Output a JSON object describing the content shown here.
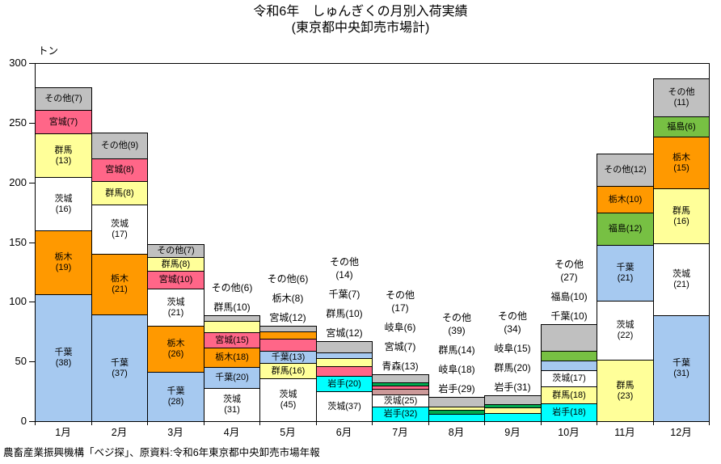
{
  "title": {
    "line1": "令和6年　しゅんぎくの月別入荷実績",
    "line2": "(東京都中央卸売市場計)"
  },
  "footer": "農畜産業振興機構「ベジ探」、原資料:令和6年東京都中央卸売市場年報",
  "chart_data": {
    "type": "bar",
    "stacked": true,
    "unit_label": "トン",
    "ylabel": "トン",
    "xlabel": "",
    "ylim": [
      0,
      300
    ],
    "yticks": [
      0,
      50,
      100,
      150,
      200,
      250,
      300
    ],
    "grid": false,
    "legend": "labels-on-segments",
    "value_note": "segment labels are percent shares; totals are tons estimated from bar heights",
    "colors": {
      "千葉": "#A6C9F0",
      "栃木": "#FF9900",
      "茨城": "#FFFFFF",
      "群馬": "#FFFF99",
      "宮城": "#FF6688",
      "その他": "#C0C0C0",
      "岩手": "#00FFFF",
      "岐阜": "#00A94F",
      "青森": "#CC9999",
      "福島": "#77C043"
    },
    "months": [
      {
        "label": "1月",
        "total_tons": 280,
        "segments": [
          {
            "name": "千葉",
            "pct": 38,
            "label": "in2"
          },
          {
            "name": "栃木",
            "pct": 19,
            "label": "in2"
          },
          {
            "name": "茨城",
            "pct": 16,
            "label": "in2"
          },
          {
            "name": "群馬",
            "pct": 13,
            "label": "in2"
          },
          {
            "name": "宮城",
            "pct": 7,
            "label": "in1"
          },
          {
            "name": "その他",
            "pct": 7,
            "label": "in1"
          }
        ]
      },
      {
        "label": "2月",
        "total_tons": 242,
        "segments": [
          {
            "name": "千葉",
            "pct": 37,
            "label": "in2"
          },
          {
            "name": "栃木",
            "pct": 21,
            "label": "in2"
          },
          {
            "name": "茨城",
            "pct": 17,
            "label": "in2"
          },
          {
            "name": "群馬",
            "pct": 8,
            "label": "in1"
          },
          {
            "name": "宮城",
            "pct": 8,
            "label": "in1"
          },
          {
            "name": "その他",
            "pct": 9,
            "label": "in1"
          }
        ]
      },
      {
        "label": "3月",
        "total_tons": 148,
        "segments": [
          {
            "name": "千葉",
            "pct": 28,
            "label": "in2"
          },
          {
            "name": "栃木",
            "pct": 26,
            "label": "in2"
          },
          {
            "name": "茨城",
            "pct": 21,
            "label": "in2"
          },
          {
            "name": "宮城",
            "pct": 10,
            "label": "in1"
          },
          {
            "name": "群馬",
            "pct": 8,
            "label": "in1"
          },
          {
            "name": "その他",
            "pct": 7,
            "label": "in1"
          }
        ]
      },
      {
        "label": "4月",
        "total_tons": 89,
        "segments": [
          {
            "name": "茨城",
            "pct": 31,
            "label": "in2"
          },
          {
            "name": "千葉",
            "pct": 20,
            "label": "in1"
          },
          {
            "name": "栃木",
            "pct": 18,
            "label": "in1"
          },
          {
            "name": "宮城",
            "pct": 15,
            "label": "in1"
          },
          {
            "name": "群馬",
            "pct": 10,
            "label": "out1"
          },
          {
            "name": "その他",
            "pct": 6,
            "label": "out1"
          }
        ]
      },
      {
        "label": "5月",
        "total_tons": 80,
        "segments": [
          {
            "name": "茨城",
            "pct": 45,
            "label": "in2"
          },
          {
            "name": "群馬",
            "pct": 16,
            "label": "in1"
          },
          {
            "name": "千葉",
            "pct": 13,
            "label": "in1"
          },
          {
            "name": "宮城",
            "pct": 12,
            "label": "out1"
          },
          {
            "name": "栃木",
            "pct": 8,
            "label": "out1"
          },
          {
            "name": "その他",
            "pct": 6,
            "label": "out1"
          }
        ]
      },
      {
        "label": "6月",
        "total_tons": 67,
        "segments": [
          {
            "name": "茨城",
            "pct": 37,
            "label": "in1"
          },
          {
            "name": "岩手",
            "pct": 20,
            "label": "in1"
          },
          {
            "name": "宮城",
            "pct": 12,
            "label": "out1"
          },
          {
            "name": "群馬",
            "pct": 10,
            "label": "out1"
          },
          {
            "name": "千葉",
            "pct": 7,
            "label": "out1"
          },
          {
            "name": "その他",
            "pct": 14,
            "label": "out2"
          }
        ]
      },
      {
        "label": "7月",
        "total_tons": 39,
        "segments": [
          {
            "name": "岩手",
            "pct": 32,
            "label": "in1"
          },
          {
            "name": "茨城",
            "pct": 25,
            "label": "in1"
          },
          {
            "name": "青森",
            "pct": 13,
            "label": "out1"
          },
          {
            "name": "宮城",
            "pct": 7,
            "label": "out1"
          },
          {
            "name": "岐阜",
            "pct": 6,
            "label": "out1"
          },
          {
            "name": "その他",
            "pct": 17,
            "label": "out2"
          }
        ]
      },
      {
        "label": "8月",
        "total_tons": 20,
        "segments": [
          {
            "name": "岩手",
            "pct": 29,
            "label": "out1"
          },
          {
            "name": "岐阜",
            "pct": 18,
            "label": "out1"
          },
          {
            "name": "群馬",
            "pct": 14,
            "label": "out1"
          },
          {
            "name": "その他",
            "pct": 39,
            "label": "out2"
          }
        ]
      },
      {
        "label": "9月",
        "total_tons": 22,
        "segments": [
          {
            "name": "岩手",
            "pct": 31,
            "label": "out1"
          },
          {
            "name": "群馬",
            "pct": 20,
            "label": "out1"
          },
          {
            "name": "岐阜",
            "pct": 15,
            "label": "out1"
          },
          {
            "name": "その他",
            "pct": 34,
            "label": "out2"
          }
        ]
      },
      {
        "label": "10月",
        "total_tons": 81,
        "segments": [
          {
            "name": "岩手",
            "pct": 18,
            "label": "in1"
          },
          {
            "name": "群馬",
            "pct": 18,
            "label": "in1"
          },
          {
            "name": "茨城",
            "pct": 17,
            "label": "in1"
          },
          {
            "name": "千葉",
            "pct": 10,
            "label": "out1"
          },
          {
            "name": "福島",
            "pct": 10,
            "label": "out1"
          },
          {
            "name": "その他",
            "pct": 27,
            "label": "out2"
          }
        ]
      },
      {
        "label": "11月",
        "total_tons": 224,
        "segments": [
          {
            "name": "群馬",
            "pct": 23,
            "label": "in2"
          },
          {
            "name": "茨城",
            "pct": 22,
            "label": "in2"
          },
          {
            "name": "千葉",
            "pct": 21,
            "label": "in2"
          },
          {
            "name": "福島",
            "pct": 12,
            "label": "in1"
          },
          {
            "name": "栃木",
            "pct": 10,
            "label": "in1"
          },
          {
            "name": "その他",
            "pct": 12,
            "label": "in1"
          }
        ]
      },
      {
        "label": "12月",
        "total_tons": 287,
        "segments": [
          {
            "name": "千葉",
            "pct": 31,
            "label": "in2"
          },
          {
            "name": "茨城",
            "pct": 21,
            "label": "in2"
          },
          {
            "name": "群馬",
            "pct": 16,
            "label": "in2"
          },
          {
            "name": "栃木",
            "pct": 15,
            "label": "in2"
          },
          {
            "name": "福島",
            "pct": 6,
            "label": "in1"
          },
          {
            "name": "その他",
            "pct": 11,
            "label": "in2"
          }
        ]
      }
    ]
  }
}
